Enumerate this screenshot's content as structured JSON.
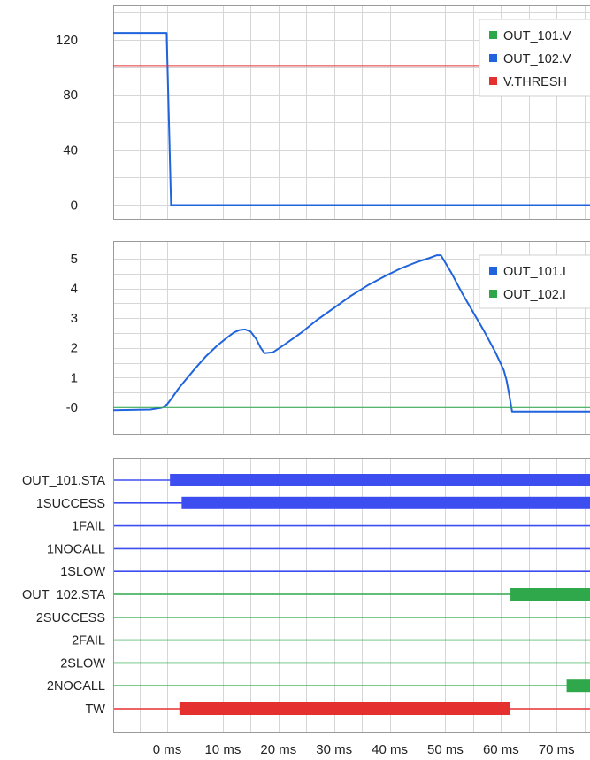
{
  "chart_data": [
    {
      "type": "line",
      "title": "",
      "xlabel": "",
      "ylabel": "",
      "xlim": [
        -9.7,
        76
      ],
      "ylim": [
        -10,
        145
      ],
      "yticks": [
        0,
        40,
        80,
        120
      ],
      "grid": true,
      "legend": "top-right",
      "series": [
        {
          "name": "OUT_101.V",
          "color": "#2ca84a",
          "x": [],
          "y": []
        },
        {
          "name": "OUT_102.V",
          "color": "#1f64dc",
          "x": [
            -9.7,
            -0.1,
            0.7,
            76
          ],
          "y": [
            125,
            125,
            0,
            0
          ]
        },
        {
          "name": "V.THRESH",
          "color": "#e53030",
          "x": [
            -9.7,
            76
          ],
          "y": [
            101,
            101
          ]
        }
      ]
    },
    {
      "type": "line",
      "title": "",
      "xlabel": "",
      "ylabel": "",
      "xlim": [
        -9.7,
        76
      ],
      "ylim": [
        -0.9,
        5.6
      ],
      "yticks": [
        0,
        1,
        2,
        3,
        4,
        5
      ],
      "ytick_labels": [
        "-0",
        "1",
        "2",
        "3",
        "4",
        "5"
      ],
      "grid": true,
      "legend": "top-right",
      "series": [
        {
          "name": "OUT_101.I",
          "color": "#1f64dc",
          "x": [
            -9.7,
            -3,
            -1,
            0,
            1,
            2,
            3,
            5,
            7,
            9,
            11,
            12,
            13,
            14,
            15,
            16,
            16.8,
            17.5,
            19,
            21,
            24,
            27,
            30,
            33,
            36,
            39,
            42,
            45,
            47,
            48.5,
            49.2,
            51,
            53,
            55,
            57,
            59,
            60.5,
            61,
            61.5,
            62,
            76
          ],
          "y": [
            -0.1,
            -0.08,
            -0.02,
            0.1,
            0.35,
            0.62,
            0.85,
            1.3,
            1.72,
            2.08,
            2.38,
            2.52,
            2.6,
            2.62,
            2.55,
            2.3,
            2.0,
            1.82,
            1.85,
            2.1,
            2.5,
            2.95,
            3.35,
            3.75,
            4.1,
            4.4,
            4.68,
            4.9,
            5.02,
            5.12,
            5.12,
            4.55,
            3.85,
            3.2,
            2.55,
            1.85,
            1.25,
            0.9,
            0.4,
            -0.15,
            -0.15
          ]
        },
        {
          "name": "OUT_102.I",
          "color": "#2ca84a",
          "x": [
            -9.7,
            76
          ],
          "y": [
            0,
            0
          ]
        }
      ]
    },
    {
      "type": "timeline",
      "title": "",
      "xlabel": "",
      "xlim": [
        -9.7,
        76
      ],
      "xticks": [
        0,
        10,
        20,
        30,
        40,
        50,
        60,
        70
      ],
      "xtick_labels": [
        "0 ms",
        "10 ms",
        "20 ms",
        "30 ms",
        "40 ms",
        "50 ms",
        "60 ms",
        "70 ms"
      ],
      "signals": [
        {
          "name": "OUT_101.STA",
          "color": "#3d4ef0",
          "active": [
            [
              0.5,
              76
            ]
          ]
        },
        {
          "name": "1SUCCESS",
          "color": "#3d4ef0",
          "active": [
            [
              2.6,
              76
            ]
          ]
        },
        {
          "name": "1FAIL",
          "color": "#3d4ef0",
          "active": []
        },
        {
          "name": "1NOCALL",
          "color": "#3d4ef0",
          "active": []
        },
        {
          "name": "1SLOW",
          "color": "#3d4ef0",
          "active": []
        },
        {
          "name": "OUT_102.STA",
          "color": "#2ea84a",
          "active": [
            [
              61.7,
              76
            ]
          ]
        },
        {
          "name": "2SUCCESS",
          "color": "#2ea84a",
          "active": []
        },
        {
          "name": "2FAIL",
          "color": "#2ea84a",
          "active": []
        },
        {
          "name": "2SLOW",
          "color": "#2ea84a",
          "active": []
        },
        {
          "name": "2NOCALL",
          "color": "#2ea84a",
          "active": [
            [
              71.8,
              76
            ]
          ]
        },
        {
          "name": "TW",
          "color": "#e53030",
          "active": [
            [
              2.2,
              61.6
            ]
          ]
        }
      ]
    }
  ]
}
